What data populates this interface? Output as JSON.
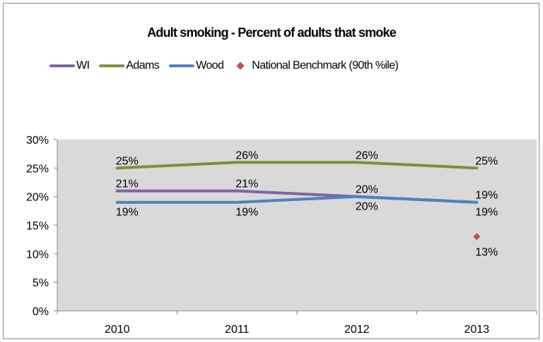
{
  "chart_data": {
    "type": "line",
    "title": "Adult smoking - Percent of adults that smoke",
    "categories": [
      "2010",
      "2011",
      "2012",
      "2013"
    ],
    "y_ticks": [
      "0%",
      "5%",
      "10%",
      "15%",
      "20%",
      "25%",
      "30%"
    ],
    "ylim": [
      0,
      30
    ],
    "grid": false,
    "legend_position": "top",
    "series": [
      {
        "name": "WI",
        "color": "#8064a2",
        "values": [
          21,
          21,
          20,
          19
        ],
        "labels": [
          "21%",
          "21%",
          "20%",
          "19%"
        ],
        "label_side": [
          "above",
          "above",
          "above",
          "above"
        ]
      },
      {
        "name": "Adams",
        "color": "#77933c",
        "values": [
          25,
          26,
          26,
          25
        ],
        "labels": [
          "25%",
          "26%",
          "26%",
          "25%"
        ],
        "label_side": [
          "above",
          "above",
          "above",
          "above"
        ]
      },
      {
        "name": "Wood",
        "color": "#4f81bd",
        "values": [
          19,
          19,
          20,
          19
        ],
        "labels": [
          "19%",
          "19%",
          "20%",
          "19%"
        ],
        "label_side": [
          "below",
          "below",
          "below",
          "below"
        ]
      }
    ],
    "benchmark": {
      "name": "National Benchmark (90th %ile)",
      "color": "#c0504d",
      "category": "2013",
      "value": 13,
      "label": "13%"
    },
    "plot_background": "#d9d9d9"
  }
}
